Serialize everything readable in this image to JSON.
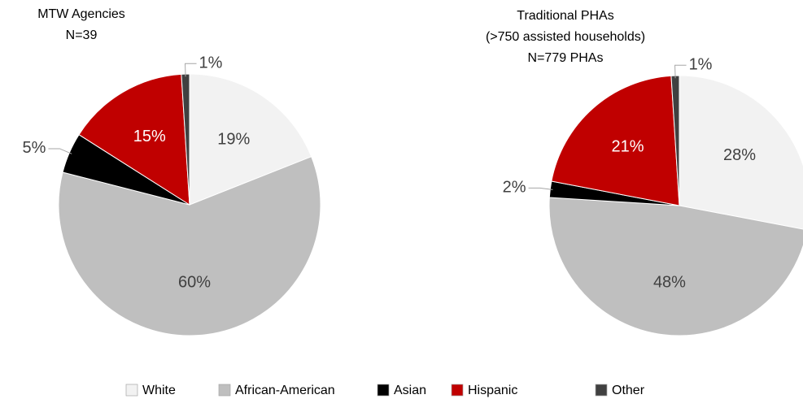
{
  "chart_data": [
    {
      "type": "pie",
      "title": [
        "MTW Agencies",
        "N=39"
      ],
      "categories": [
        "White",
        "African-American",
        "Asian",
        "Hispanic",
        "Other"
      ],
      "values": [
        19,
        60,
        5,
        15,
        1
      ],
      "value_labels": [
        "19%",
        "60%",
        "5%",
        "15%",
        "1%"
      ],
      "colors": [
        "#f2f2f2",
        "#bfbfbf",
        "#000000",
        "#c00000",
        "#404040"
      ]
    },
    {
      "type": "pie",
      "title": [
        "Traditional PHAs",
        "(>750 assisted households)",
        "N=779 PHAs"
      ],
      "categories": [
        "White",
        "African-American",
        "Asian",
        "Hispanic",
        "Other"
      ],
      "values": [
        28,
        48,
        2,
        21,
        1
      ],
      "value_labels": [
        "28%",
        "48%",
        "2%",
        "21%",
        "1%"
      ],
      "colors": [
        "#f2f2f2",
        "#bfbfbf",
        "#000000",
        "#c00000",
        "#404040"
      ]
    }
  ]
}
